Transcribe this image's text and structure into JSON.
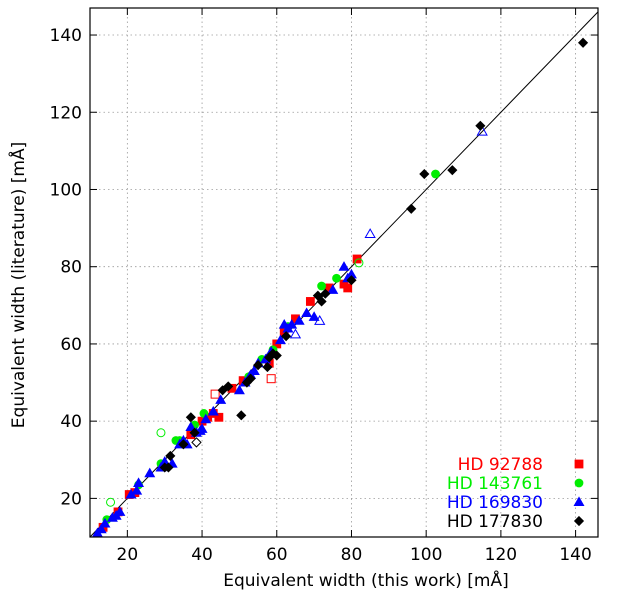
{
  "chart_data": {
    "type": "scatter",
    "xlabel": "Equivalent width (this work) [mÅ]",
    "ylabel": "Equivalent width (literature) [mÅ]",
    "xlim": [
      10,
      146
    ],
    "ylim": [
      10,
      147
    ],
    "xticks": [
      20,
      40,
      60,
      80,
      100,
      120,
      140
    ],
    "yticks": [
      20,
      40,
      60,
      80,
      100,
      120,
      140
    ],
    "grid": true,
    "legend_position": "bottom-right",
    "reference_line": "y = x",
    "colors": {
      "HD 92788": "#ff0000",
      "HD 143761": "#00ee00",
      "HD 169830": "#0000ff",
      "HD 177830": "#000000"
    },
    "series": [
      {
        "name": "HD 92788",
        "marker": "square",
        "filled": [
          [
            13.5,
            12.5
          ],
          [
            17.5,
            16.5
          ],
          [
            20.5,
            21
          ],
          [
            22,
            21.5
          ],
          [
            37,
            36.5
          ],
          [
            40,
            40
          ],
          [
            41.5,
            41
          ],
          [
            43,
            42
          ],
          [
            44.5,
            41
          ],
          [
            48,
            48.5
          ],
          [
            51,
            50.5
          ],
          [
            58,
            55
          ],
          [
            60,
            60
          ],
          [
            62,
            63
          ],
          [
            65,
            66.5
          ],
          [
            74,
            74.5
          ],
          [
            78,
            75.5
          ],
          [
            79,
            74.5
          ],
          [
            81.5,
            82
          ],
          [
            69,
            71
          ]
        ],
        "open": [
          [
            43.5,
            47
          ],
          [
            58.5,
            51
          ]
        ]
      },
      {
        "name": "HD 143761",
        "marker": "circle",
        "filled": [
          [
            14.5,
            14.5
          ],
          [
            23,
            23.5
          ],
          [
            29,
            29
          ],
          [
            33,
            35
          ],
          [
            34,
            35
          ],
          [
            38,
            39
          ],
          [
            40.5,
            42
          ],
          [
            52.5,
            51.5
          ],
          [
            56,
            56
          ],
          [
            59,
            58.5
          ],
          [
            63,
            64.5
          ],
          [
            72,
            75
          ],
          [
            76,
            77
          ],
          [
            102.5,
            104
          ]
        ],
        "open": [
          [
            15.5,
            19
          ],
          [
            29,
            37
          ],
          [
            82,
            81
          ]
        ]
      },
      {
        "name": "HD 169830",
        "marker": "triangle",
        "filled": [
          [
            12,
            11
          ],
          [
            13,
            12
          ],
          [
            14,
            13.5
          ],
          [
            16,
            15
          ],
          [
            17,
            15.5
          ],
          [
            18,
            16.5
          ],
          [
            21,
            21
          ],
          [
            22.5,
            22
          ],
          [
            23,
            24
          ],
          [
            26,
            26.5
          ],
          [
            29,
            28
          ],
          [
            30,
            29.5
          ],
          [
            32,
            29
          ],
          [
            34,
            34
          ],
          [
            35,
            35
          ],
          [
            36,
            34
          ],
          [
            37,
            38.5
          ],
          [
            38.5,
            37
          ],
          [
            39.5,
            37.5
          ],
          [
            40,
            38
          ],
          [
            41,
            40.5
          ],
          [
            43,
            42.5
          ],
          [
            45,
            45.5
          ],
          [
            50,
            48
          ],
          [
            51.5,
            50
          ],
          [
            53,
            52
          ],
          [
            54,
            53
          ],
          [
            55,
            55
          ],
          [
            57,
            56
          ],
          [
            58.5,
            58
          ],
          [
            61,
            61
          ],
          [
            62,
            65
          ],
          [
            63,
            64
          ],
          [
            64,
            65
          ],
          [
            66,
            66
          ],
          [
            68,
            68
          ],
          [
            70,
            67
          ],
          [
            75,
            74
          ],
          [
            78,
            80
          ],
          [
            79,
            77
          ],
          [
            80,
            78
          ]
        ],
        "open": [
          [
            65,
            62.5
          ],
          [
            71.5,
            66
          ],
          [
            85,
            88.5
          ],
          [
            115,
            115
          ]
        ]
      },
      {
        "name": "HD 177830",
        "marker": "diamond",
        "filled": [
          [
            30,
            28
          ],
          [
            31,
            28
          ],
          [
            31.5,
            31
          ],
          [
            35,
            34
          ],
          [
            37,
            41
          ],
          [
            38,
            37
          ],
          [
            45.5,
            48
          ],
          [
            47,
            49
          ],
          [
            50.5,
            41.5
          ],
          [
            52,
            50
          ],
          [
            53,
            51
          ],
          [
            55,
            54.5
          ],
          [
            57.5,
            54
          ],
          [
            58,
            56.5
          ],
          [
            59,
            57.5
          ],
          [
            60,
            57
          ],
          [
            62.5,
            62
          ],
          [
            71,
            72.5
          ],
          [
            72,
            71
          ],
          [
            73,
            73
          ],
          [
            80,
            76.5
          ],
          [
            96,
            95
          ],
          [
            99.5,
            104
          ],
          [
            107,
            105
          ],
          [
            114.5,
            116.5
          ],
          [
            142,
            138
          ]
        ],
        "open": [
          [
            38.5,
            34.5
          ]
        ]
      }
    ]
  }
}
